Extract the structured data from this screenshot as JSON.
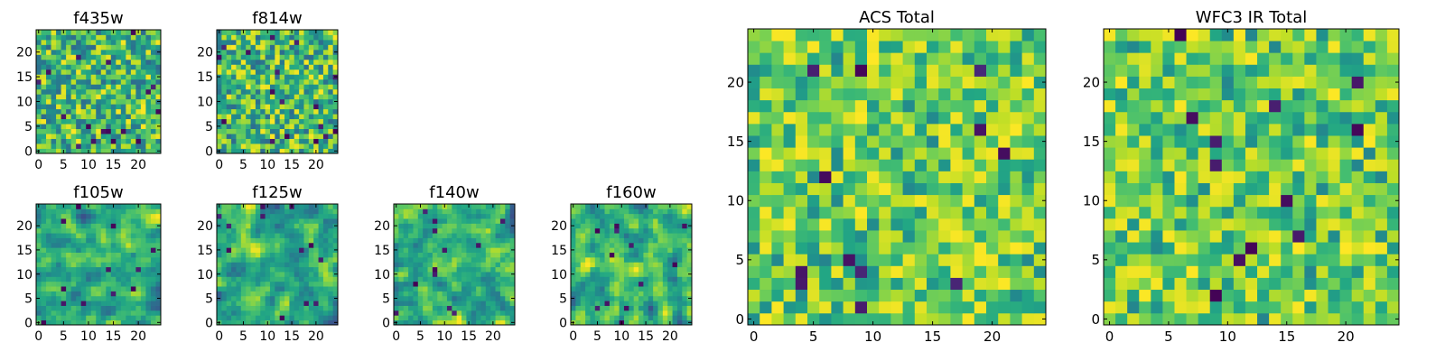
{
  "chart_data": [
    {
      "type": "heatmap",
      "title": "f435w",
      "grid_size": [
        25,
        25
      ],
      "xlim": [
        -0.5,
        24.5
      ],
      "ylim": [
        -0.5,
        24.5
      ],
      "xticks": [
        0,
        5,
        10,
        15,
        20
      ],
      "yticks": [
        0,
        5,
        10,
        15,
        20
      ],
      "colormap": "viridis",
      "texture": "fine-noise",
      "seed": 11
    },
    {
      "type": "heatmap",
      "title": "f814w",
      "grid_size": [
        25,
        25
      ],
      "xlim": [
        -0.5,
        24.5
      ],
      "ylim": [
        -0.5,
        24.5
      ],
      "xticks": [
        0,
        5,
        10,
        15,
        20
      ],
      "yticks": [
        0,
        5,
        10,
        15,
        20
      ],
      "colormap": "viridis",
      "texture": "fine-noise",
      "seed": 23
    },
    {
      "type": "heatmap",
      "title": "f105w",
      "grid_size": [
        25,
        25
      ],
      "xlim": [
        -0.5,
        24.5
      ],
      "ylim": [
        -0.5,
        24.5
      ],
      "xticks": [
        0,
        5,
        10,
        15,
        20
      ],
      "yticks": [
        0,
        5,
        10,
        15,
        20
      ],
      "colormap": "viridis",
      "texture": "smooth-noise",
      "seed": 37
    },
    {
      "type": "heatmap",
      "title": "f125w",
      "grid_size": [
        25,
        25
      ],
      "xlim": [
        -0.5,
        24.5
      ],
      "ylim": [
        -0.5,
        24.5
      ],
      "xticks": [
        0,
        5,
        10,
        15,
        20
      ],
      "yticks": [
        0,
        5,
        10,
        15,
        20
      ],
      "colormap": "viridis",
      "texture": "smooth-noise",
      "seed": 41
    },
    {
      "type": "heatmap",
      "title": "f140w",
      "grid_size": [
        25,
        25
      ],
      "xlim": [
        -0.5,
        24.5
      ],
      "ylim": [
        -0.5,
        24.5
      ],
      "xticks": [
        0,
        5,
        10,
        15,
        20
      ],
      "yticks": [
        0,
        5,
        10,
        15,
        20
      ],
      "colormap": "viridis",
      "texture": "smooth-noise",
      "seed": 53
    },
    {
      "type": "heatmap",
      "title": "f160w",
      "grid_size": [
        25,
        25
      ],
      "xlim": [
        -0.5,
        24.5
      ],
      "ylim": [
        -0.5,
        24.5
      ],
      "xticks": [
        0,
        5,
        10,
        15,
        20
      ],
      "yticks": [
        0,
        5,
        10,
        15,
        20
      ],
      "colormap": "viridis",
      "texture": "smooth-noise",
      "seed": 67
    },
    {
      "type": "heatmap",
      "title": "ACS Total",
      "grid_size": [
        25,
        25
      ],
      "xlim": [
        -0.5,
        24.5
      ],
      "ylim": [
        -0.5,
        24.5
      ],
      "xticks": [
        0,
        5,
        10,
        15,
        20
      ],
      "yticks": [
        0,
        5,
        10,
        15,
        20
      ],
      "colormap": "viridis",
      "texture": "bright-noise",
      "seed": 79
    },
    {
      "type": "heatmap",
      "title": "WFC3 IR Total",
      "grid_size": [
        25,
        25
      ],
      "xlim": [
        -0.5,
        24.5
      ],
      "ylim": [
        -0.5,
        24.5
      ],
      "xticks": [
        0,
        5,
        10,
        15,
        20
      ],
      "yticks": [
        0,
        5,
        10,
        15,
        20
      ],
      "colormap": "viridis",
      "texture": "bright-noise",
      "seed": 97
    }
  ]
}
